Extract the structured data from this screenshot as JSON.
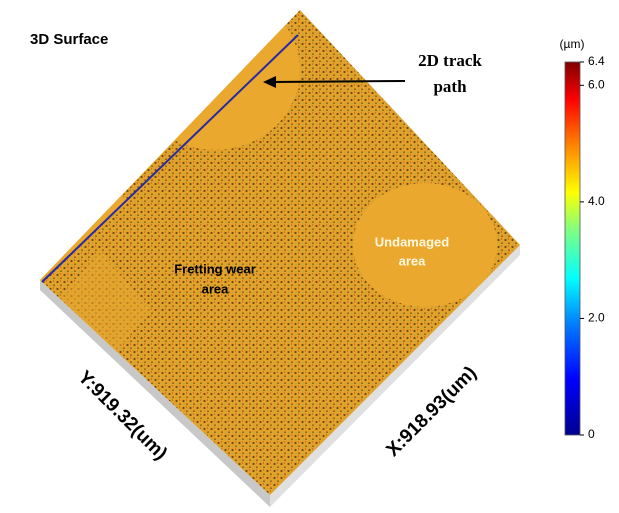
{
  "figure": {
    "title": "3D Surface",
    "annotations": {
      "track": [
        "2D track",
        "path"
      ],
      "undamaged": [
        "Undamaged",
        "area"
      ],
      "fretting": [
        "Fretting wear",
        "area"
      ]
    },
    "axes": {
      "y_label": "Y:919.32(um)",
      "x_label": "X:918.93(um)"
    },
    "colorbar": {
      "unit": "(µm)",
      "range": [
        0,
        6.4
      ],
      "ticks": [
        0,
        {
          "value": 2.0,
          "label": "2.0"
        },
        {
          "value": 4.0,
          "label": "4.0"
        },
        {
          "value": 6.0,
          "label": "6.0"
        },
        6.4
      ]
    }
  }
}
